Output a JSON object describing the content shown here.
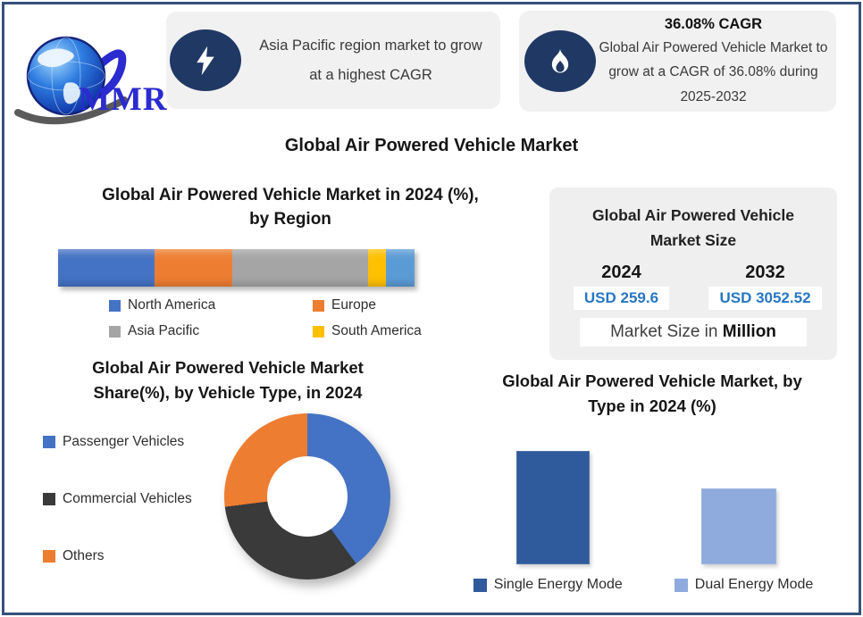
{
  "page": {
    "border_color": "#35517C",
    "background": "#ffffff"
  },
  "logo": {
    "text": "MMR"
  },
  "callouts": [
    {
      "icon": "lightning",
      "text": "Asia Pacific region market to grow at a highest CAGR"
    },
    {
      "icon": "flame",
      "title": "36.08% CAGR",
      "text": "Global Air Powered Vehicle Market to grow at a CAGR of 36.08% during 2025-2032"
    }
  ],
  "main_title": "Global Air Powered Vehicle Market",
  "market_size": {
    "title": "Global Air Powered Vehicle Market Size",
    "title_lines": [
      "Global Air Powered Vehicle",
      "Market Size"
    ],
    "columns": [
      {
        "year": "2024",
        "value": "USD 259.6"
      },
      {
        "year": "2032",
        "value": "USD 3052.52"
      }
    ],
    "note_regular": "Market Size in ",
    "note_bold": "Million",
    "value_color": "#2776C2"
  },
  "chart_data": [
    {
      "id": "region_share_2024",
      "type": "bar",
      "subtype": "stacked-horizontal",
      "title": "Global Air Powered Vehicle Market in 2024 (%), by Region",
      "title_lines": [
        "Global Air Powered Vehicle Market in 2024 (%),",
        "by Region"
      ],
      "segments": [
        {
          "label": "North America",
          "value": 27,
          "color": "#4472C4"
        },
        {
          "label": "Europe",
          "value": 22,
          "color": "#ED7D31"
        },
        {
          "label": "Asia Pacific",
          "value": 38,
          "color": "#A5A5A5"
        },
        {
          "label": "South America",
          "value": 5,
          "color": "#FFC000"
        },
        {
          "label": "",
          "value": 8,
          "color": "#5B9BD5"
        }
      ],
      "legend": [
        {
          "label": "North America",
          "color": "#4472C4"
        },
        {
          "label": "Europe",
          "color": "#ED7D31"
        },
        {
          "label": "Asia Pacific",
          "color": "#A5A5A5"
        },
        {
          "label": "South America",
          "color": "#FFC000"
        }
      ],
      "legend_position": "bottom",
      "note": "values estimated from segment widths; rightmost segment unlabeled in image"
    },
    {
      "id": "vehicle_type_share_2024",
      "type": "pie",
      "subtype": "donut",
      "title": "Global Air Powered Vehicle Market Share(%), by Vehicle Type, in 2024",
      "title_lines": [
        "Global Air Powered Vehicle Market",
        "Share(%), by Vehicle Type, in 2024"
      ],
      "slices": [
        {
          "label": "Passenger Vehicles",
          "value": 40,
          "color": "#4472C4"
        },
        {
          "label": "Commercial Vehicles",
          "value": 33,
          "color": "#3A3A3A"
        },
        {
          "label": "Others",
          "value": 27,
          "color": "#ED7D31"
        }
      ],
      "legend_position": "left",
      "note": "values estimated from slice angles"
    },
    {
      "id": "type_share_2024",
      "type": "bar",
      "subtype": "vertical",
      "title": "Global Air Powered Vehicle Market, by Type in 2024 (%)",
      "title_lines": [
        "Global Air Powered Vehicle Market, by",
        "Type in 2024 (%)"
      ],
      "categories": [
        "Single Energy Mode",
        "Dual Energy Mode"
      ],
      "values": [
        60,
        40
      ],
      "colors": [
        "#2F5A9B",
        "#8FAADC"
      ],
      "legend_position": "bottom",
      "grid": false,
      "note": "no axis shown; values estimated from relative bar heights"
    }
  ]
}
